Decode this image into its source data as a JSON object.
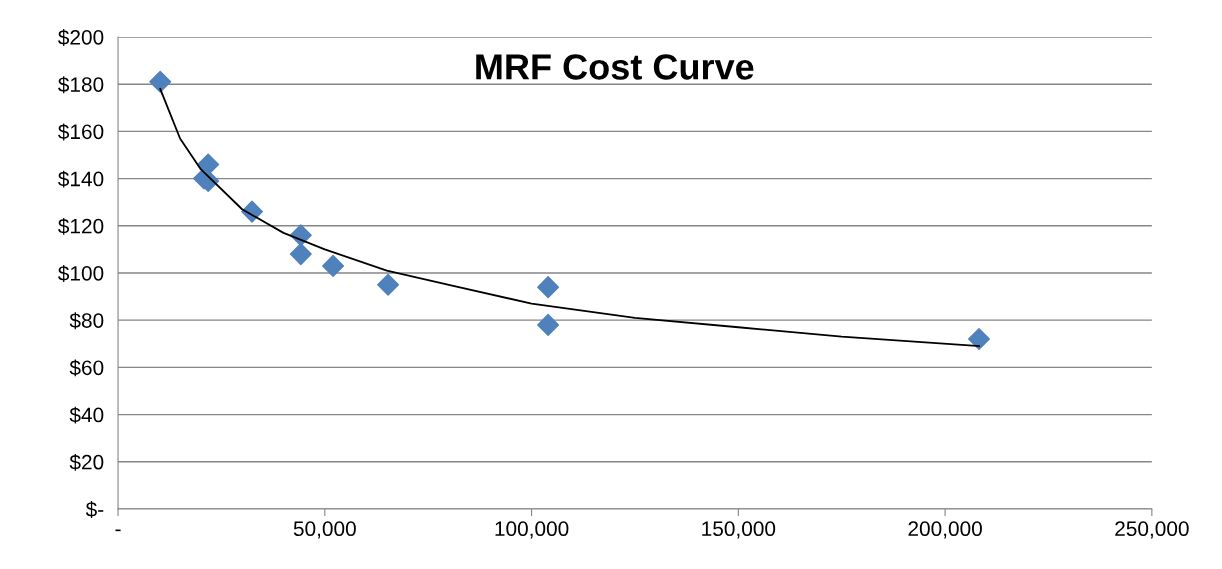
{
  "chart_data": {
    "type": "scatter",
    "title": "MRF Cost Curve",
    "x": [
      10200,
      20800,
      21800,
      21800,
      32400,
      44200,
      44200,
      52000,
      65300,
      104000,
      104000,
      208200
    ],
    "series": [
      {
        "color": "#4f81bd",
        "values": [
          181,
          140,
          146,
          139,
          126,
          116,
          108,
          103,
          95,
          94,
          78,
          72
        ],
        "marker": "diamond"
      },
      {
        "type": "line",
        "color": "#000000",
        "marker": "none",
        "line_style": "solid",
        "x": [
          10200,
          15000,
          20000,
          30000,
          40000,
          50000,
          65000,
          80000,
          100000,
          125000,
          150000,
          175000,
          208200
        ],
        "values": [
          178,
          157,
          144,
          127,
          117,
          110,
          101,
          95,
          87,
          81,
          77,
          73,
          69
        ]
      }
    ],
    "xlim": [
      0,
      250000
    ],
    "xticks": [
      {
        "value": 0,
        "label": "-"
      },
      {
        "value": 50000,
        "label": "50,000"
      },
      {
        "value": 100000,
        "label": "100,000"
      },
      {
        "value": 150000,
        "label": "150,000"
      },
      {
        "value": 200000,
        "label": "200,000"
      },
      {
        "value": 250000,
        "label": "250,000"
      }
    ],
    "ylim": [
      0,
      200
    ],
    "yticks": [
      {
        "value": 0,
        "label": "$-"
      },
      {
        "value": 20,
        "label": "$20"
      },
      {
        "value": 40,
        "label": "$40"
      },
      {
        "value": 60,
        "label": "$60"
      },
      {
        "value": 80,
        "label": "$80"
      },
      {
        "value": 100,
        "label": "$100"
      },
      {
        "value": 120,
        "label": "$120"
      },
      {
        "value": 140,
        "label": "$140"
      },
      {
        "value": 160,
        "label": "$160"
      },
      {
        "value": 180,
        "label": "$180"
      },
      {
        "value": 200,
        "label": "$200"
      }
    ],
    "grid": "y"
  }
}
